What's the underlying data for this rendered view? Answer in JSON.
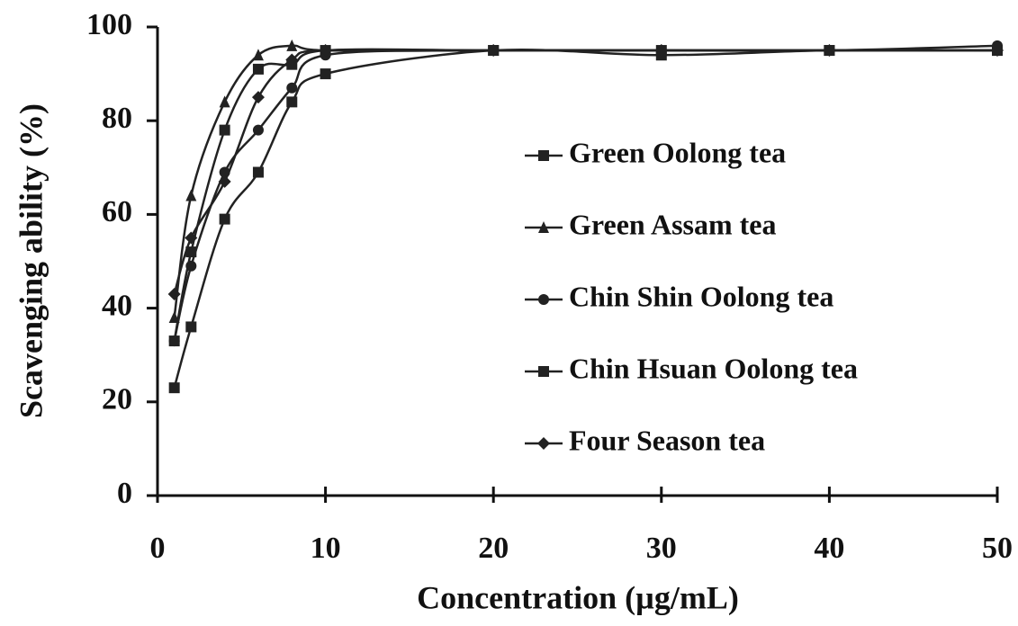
{
  "chart_data": {
    "type": "line",
    "x_label": "Concentration (µg/mL)",
    "y_label": "Scavenging ability (%)",
    "x": [
      1,
      2,
      4,
      6,
      8,
      10,
      20,
      30,
      40,
      50
    ],
    "series": [
      {
        "name": "Green Oolong tea",
        "color": "#222222",
        "marker": "square",
        "values": [
          33,
          52,
          78,
          91,
          92,
          95,
          95,
          95,
          95,
          95
        ]
      },
      {
        "name": "Green Assam tea",
        "color": "#222222",
        "marker": "triangle",
        "values": [
          38,
          64,
          84,
          94,
          96,
          95,
          95,
          95,
          95,
          95
        ]
      },
      {
        "name": "Chin Shin Oolong tea",
        "color": "#222222",
        "marker": "circle",
        "values": [
          33,
          49,
          69,
          78,
          87,
          94,
          95,
          95,
          95,
          96
        ]
      },
      {
        "name": "Chin Hsuan Oolong tea",
        "color": "#222222",
        "marker": "square",
        "values": [
          23,
          36,
          59,
          69,
          84,
          90,
          95,
          94,
          95,
          95
        ]
      },
      {
        "name": "Four Season tea",
        "color": "#222222",
        "marker": "diamond",
        "values": [
          43,
          55,
          67,
          85,
          93,
          95,
          95,
          95,
          95,
          95
        ]
      }
    ],
    "xlim": [
      0,
      50
    ],
    "xticks": [
      0,
      10,
      20,
      30,
      40,
      50
    ],
    "ylim": [
      0,
      100
    ],
    "yticks": [
      0,
      20,
      40,
      60,
      80,
      100
    ]
  }
}
